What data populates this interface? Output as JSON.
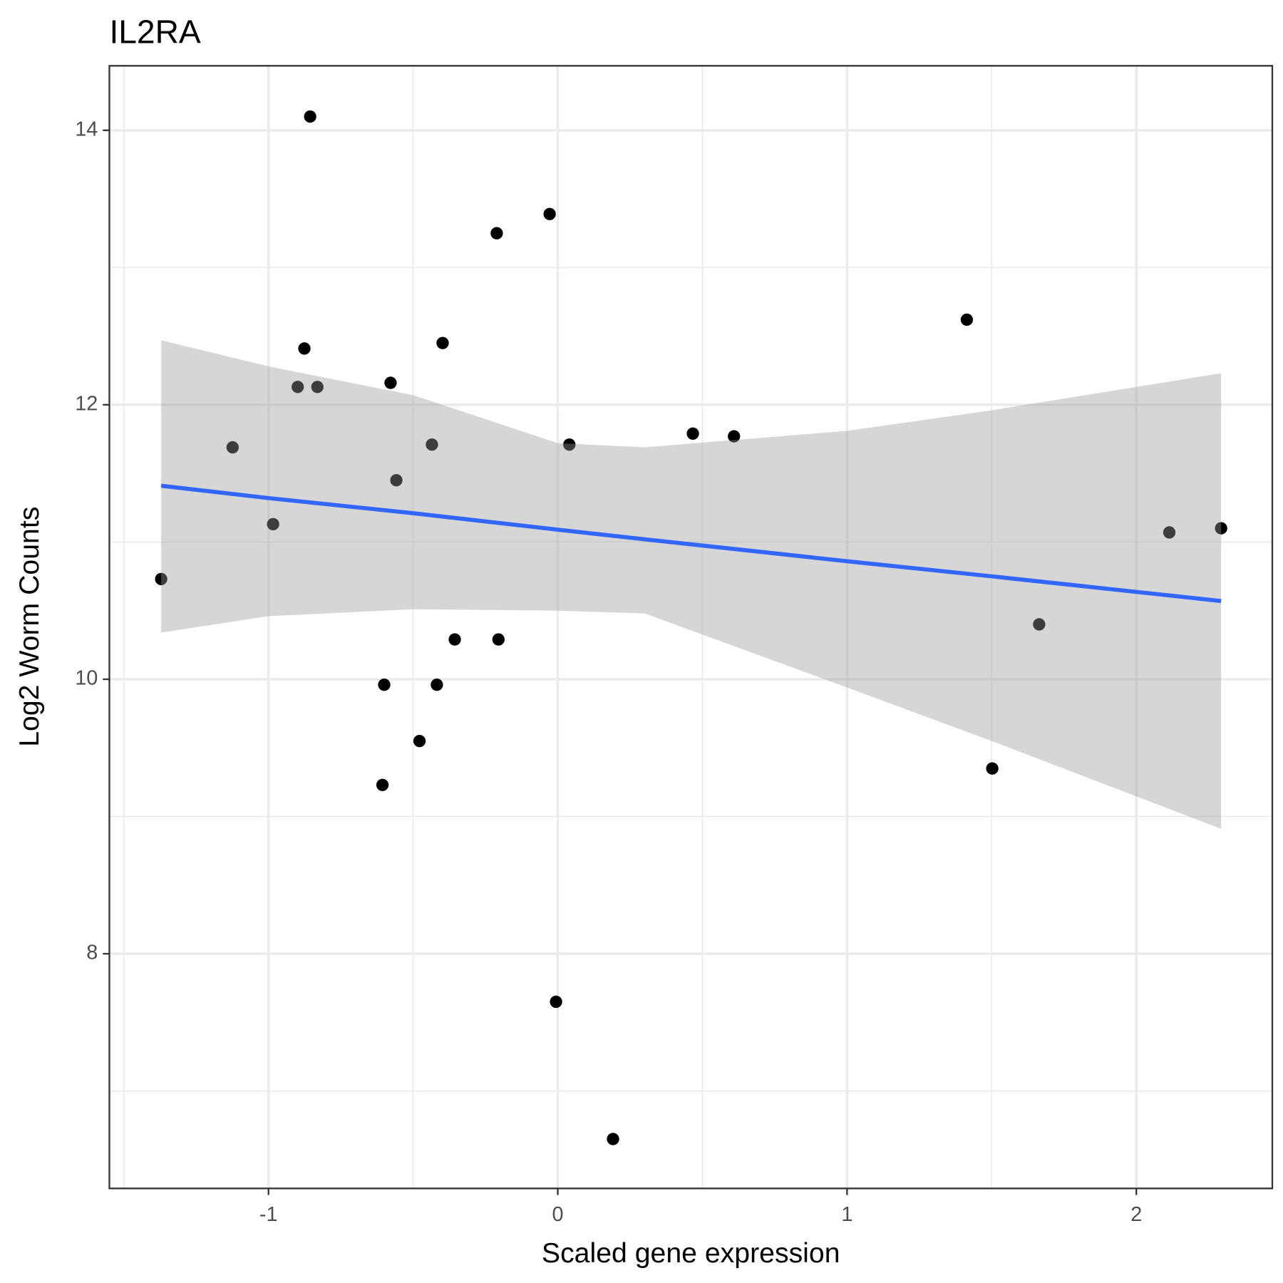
{
  "chart_data": {
    "type": "scatter",
    "title": "IL2RA",
    "x_label": "Scaled gene expression",
    "y_label": "Log2 Worm Counts",
    "xlim": [
      -1.55,
      2.47
    ],
    "ylim": [
      6.29,
      14.47
    ],
    "xticks": [
      -1,
      0,
      1,
      2
    ],
    "yticks": [
      8,
      10,
      12,
      14
    ],
    "x_minor_ticks": [
      -1.5,
      -0.5,
      0.5,
      1.5
    ],
    "y_minor_ticks": [
      7,
      9,
      11,
      13
    ],
    "grid": true,
    "color": "#000000",
    "x": [
      -1.371,
      -1.124,
      -0.984,
      -0.899,
      -0.876,
      -0.856,
      -0.831,
      -0.606,
      -0.6,
      -0.578,
      -0.558,
      -0.478,
      -0.435,
      -0.418,
      -0.398,
      -0.356,
      -0.211,
      -0.205,
      -0.028,
      -0.006,
      0.04,
      0.191,
      0.467,
      0.609,
      1.414,
      1.502,
      1.664,
      2.114,
      2.293
    ],
    "values": [
      10.73,
      11.69,
      11.13,
      12.13,
      12.41,
      14.1,
      12.13,
      9.23,
      9.96,
      12.16,
      11.45,
      9.55,
      11.71,
      9.96,
      12.45,
      10.29,
      13.25,
      10.29,
      13.39,
      7.65,
      11.71,
      6.65,
      11.79,
      11.77,
      12.62,
      9.35,
      10.4,
      11.07,
      11.1
    ],
    "fit": {
      "color": "#3366ff",
      "band_color": "#999999",
      "x": [
        -1.371,
        -1,
        -0.5,
        0,
        0.3,
        1,
        1.5,
        2.293
      ],
      "y": [
        11.41,
        11.32,
        11.21,
        11.09,
        11.02,
        10.86,
        10.75,
        10.57
      ],
      "lower": [
        10.34,
        10.46,
        10.51,
        10.5,
        10.48,
        9.94,
        9.55,
        8.91
      ],
      "upper": [
        12.47,
        12.28,
        12.07,
        11.72,
        11.69,
        11.81,
        11.96,
        12.23
      ]
    }
  }
}
